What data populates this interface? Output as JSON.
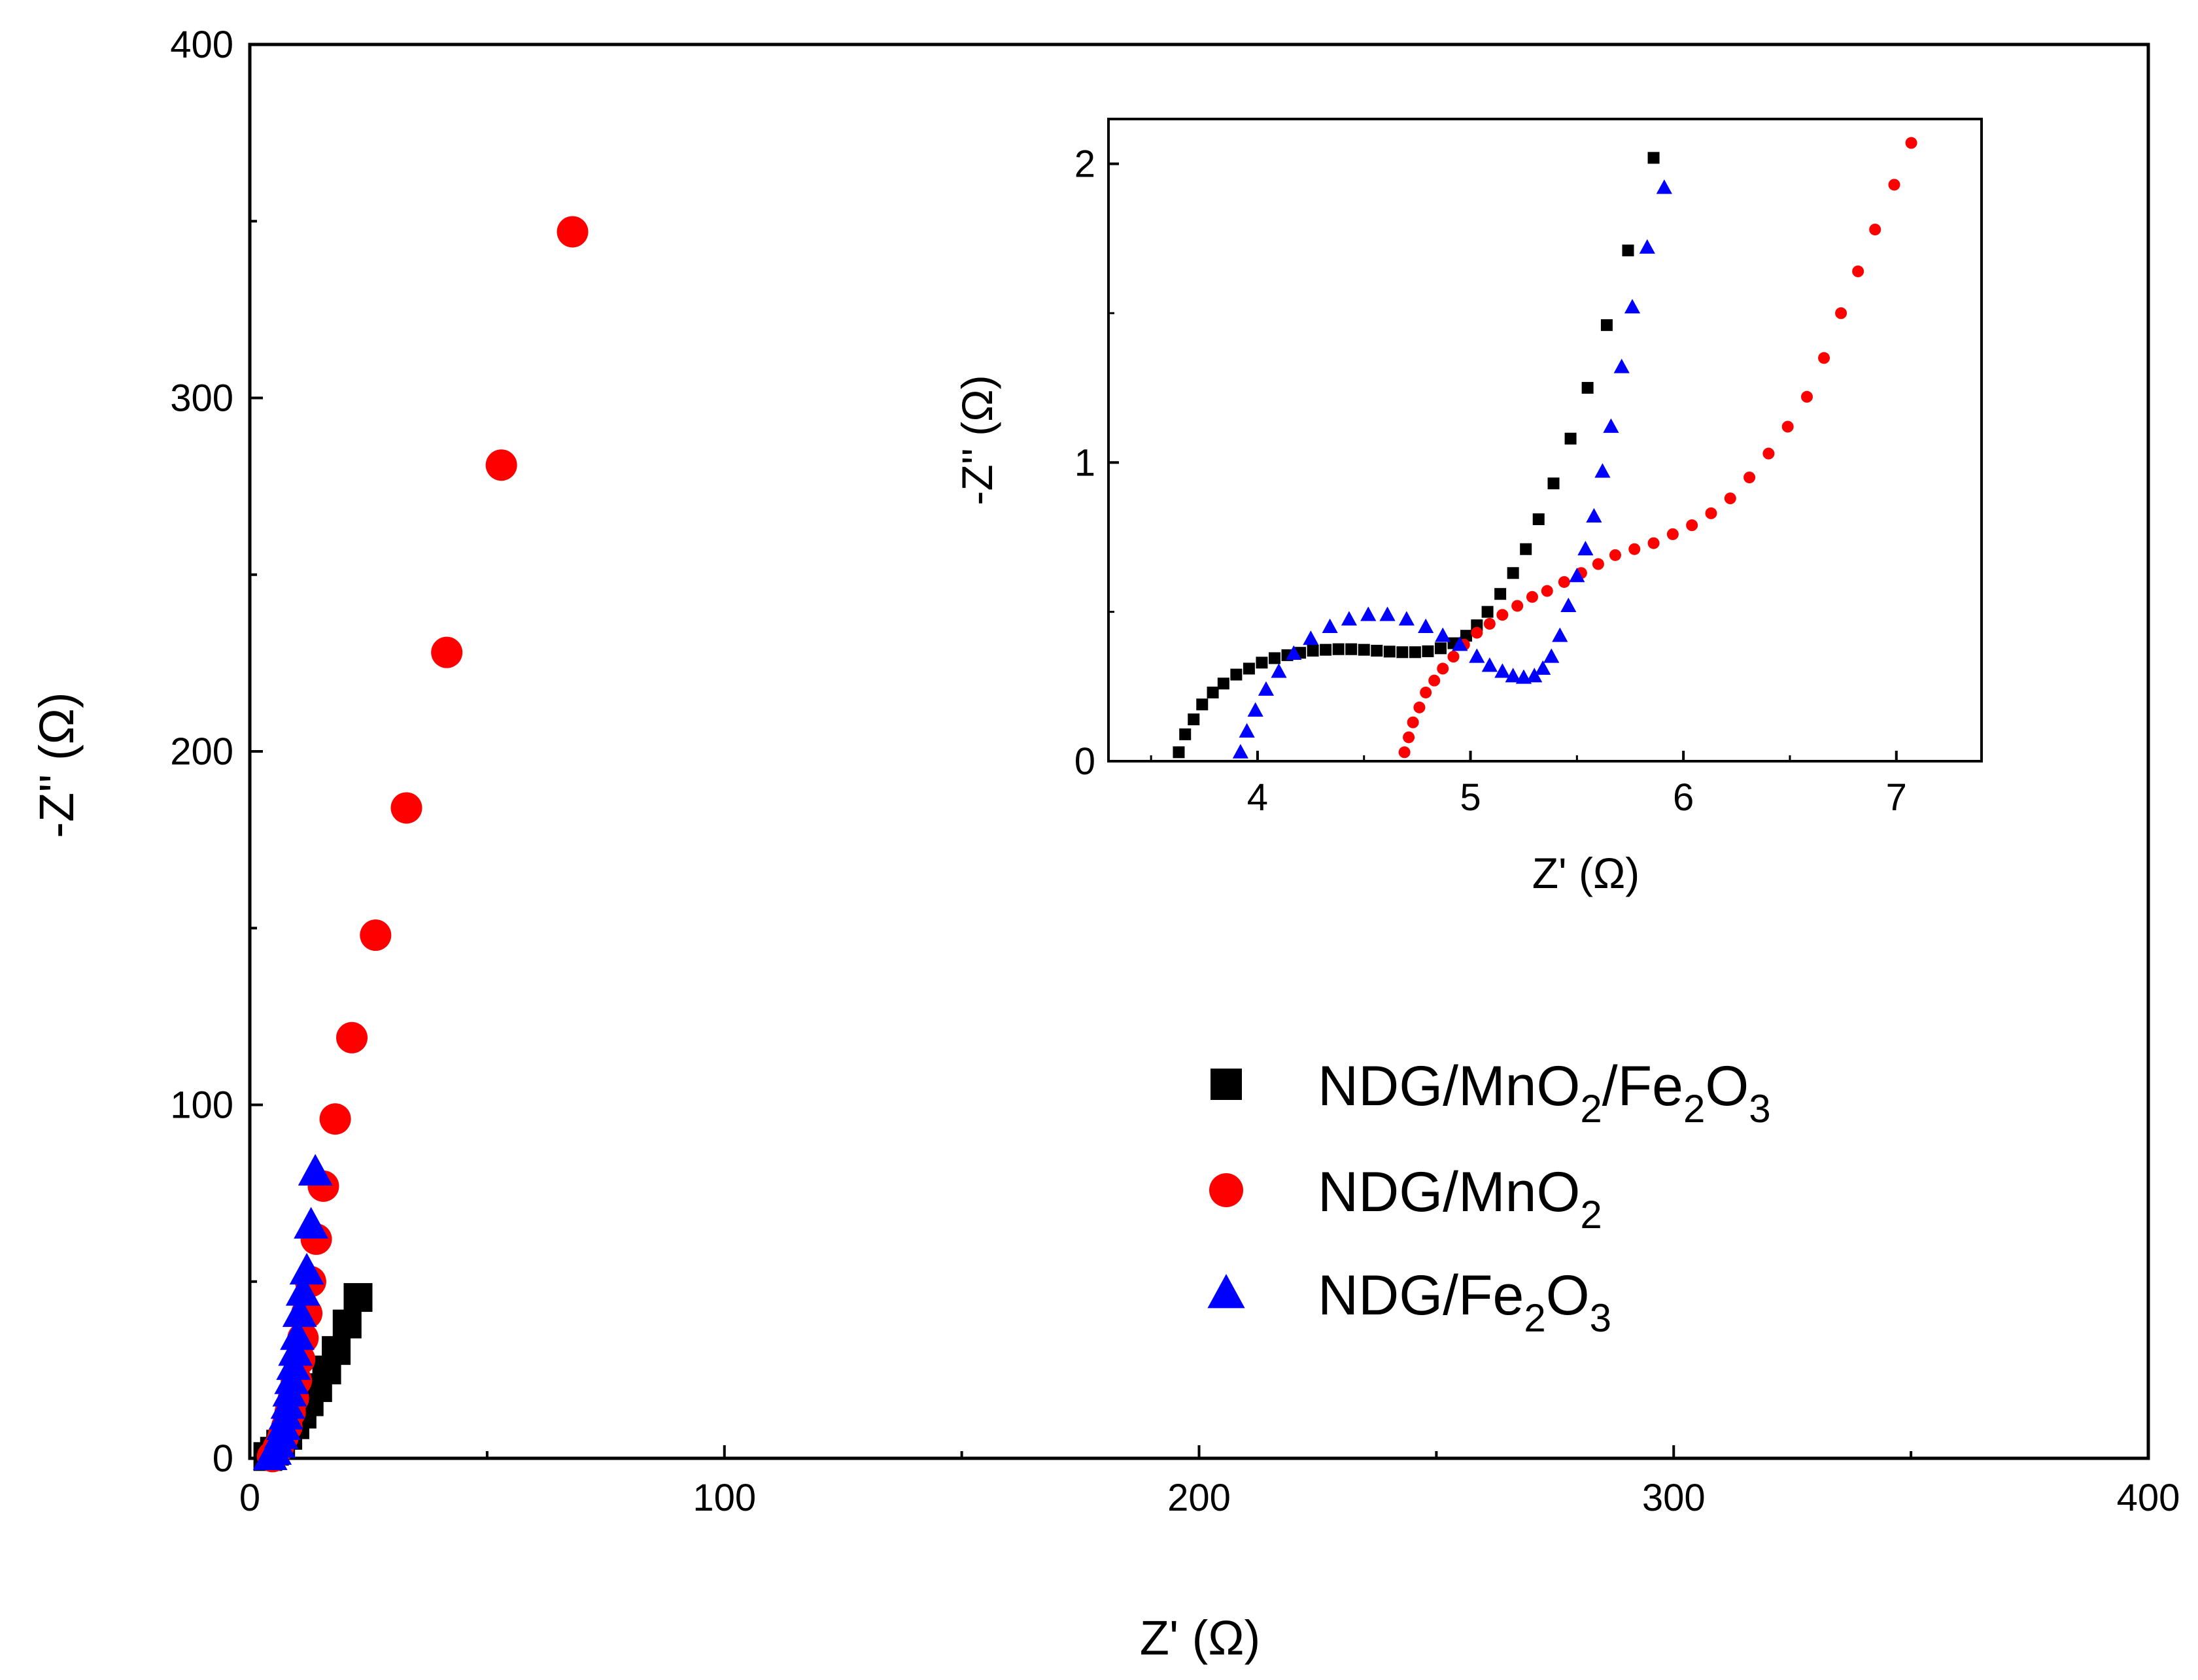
{
  "chart_data": [
    {
      "id": "main",
      "type": "scatter",
      "xlabel": "Z' (Ω)",
      "ylabel": "-Z'' (Ω)",
      "xlim": [
        0,
        400
      ],
      "ylim": [
        0,
        400
      ],
      "xticks": [
        0,
        100,
        200,
        300,
        400
      ],
      "yticks": [
        0,
        100,
        200,
        300,
        400
      ],
      "xticklabels": [
        "0",
        "100",
        "200",
        "300",
        "400"
      ],
      "yticklabels": [
        "0",
        "100",
        "200",
        "300",
        "400"
      ],
      "legend_position": "lower-right",
      "series": [
        {
          "name": "NDG/MnO2/Fe2O3",
          "label_parts": [
            [
              "NDG/MnO",
              "normal"
            ],
            [
              "2",
              "sub"
            ],
            [
              "/Fe",
              "normal"
            ],
            [
              "2",
              "sub"
            ],
            [
              "O",
              "normal"
            ],
            [
              "3",
              "sub"
            ]
          ],
          "marker": "square",
          "color": "#000000",
          "points": [
            [
              3.8,
              0.5
            ],
            [
              5.2,
              2
            ],
            [
              6.5,
              4
            ],
            [
              8,
              6.5
            ],
            [
              9.5,
              9.5
            ],
            [
              11,
              12.5
            ],
            [
              12.5,
              16
            ],
            [
              14.3,
              20
            ],
            [
              16.2,
              25
            ],
            [
              18.2,
              30.5
            ],
            [
              20.5,
              38
            ],
            [
              22.8,
              45.5
            ]
          ]
        },
        {
          "name": "NDG/MnO2",
          "label_parts": [
            [
              "NDG/MnO",
              "normal"
            ],
            [
              "2",
              "sub"
            ]
          ],
          "marker": "circle",
          "color": "#ff0000",
          "points": [
            [
              4.8,
              0.5
            ],
            [
              6,
              3
            ],
            [
              7,
              6
            ],
            [
              7.8,
              9
            ],
            [
              8.5,
              13
            ],
            [
              9.2,
              17
            ],
            [
              9.8,
              22
            ],
            [
              10.5,
              28
            ],
            [
              11.2,
              34
            ],
            [
              12,
              41
            ],
            [
              12.8,
              50
            ],
            [
              14,
              62
            ],
            [
              15.5,
              77
            ],
            [
              18,
              96
            ],
            [
              21.5,
              119
            ],
            [
              26.5,
              148
            ],
            [
              33,
              184
            ],
            [
              41.5,
              228
            ],
            [
              53,
              281
            ],
            [
              68,
              347
            ]
          ]
        },
        {
          "name": "NDG/Fe2O3",
          "label_parts": [
            [
              "NDG/Fe",
              "normal"
            ],
            [
              "2",
              "sub"
            ],
            [
              "O",
              "normal"
            ],
            [
              "3",
              "sub"
            ]
          ],
          "marker": "triangle",
          "color": "#0000ff",
          "points": [
            [
              4.3,
              0.5
            ],
            [
              5.2,
              2
            ],
            [
              6,
              4
            ],
            [
              6.6,
              6.5
            ],
            [
              7.1,
              9
            ],
            [
              7.6,
              12
            ],
            [
              8,
              15
            ],
            [
              8.4,
              18.5
            ],
            [
              8.8,
              22
            ],
            [
              9.2,
              26
            ],
            [
              9.6,
              30
            ],
            [
              10,
              34.5
            ],
            [
              10.5,
              41
            ],
            [
              11.2,
              47
            ],
            [
              12,
              53
            ],
            [
              12.9,
              66
            ],
            [
              13.8,
              81
            ]
          ]
        }
      ]
    },
    {
      "id": "inset",
      "type": "scatter",
      "xlabel": "Z' (Ω)",
      "ylabel": "-Z'' (Ω)",
      "xlim": [
        3.3,
        7.4
      ],
      "ylim": [
        0,
        2.15
      ],
      "xticks": [
        4,
        5,
        6,
        7
      ],
      "yticks": [
        0,
        1,
        2
      ],
      "xticklabels": [
        "4",
        "5",
        "6",
        "7"
      ],
      "yticklabels": [
        "0",
        "1",
        "2"
      ],
      "series": [
        {
          "name": "NDG/MnO2/Fe2O3",
          "marker": "square",
          "color": "#000000",
          "points": [
            [
              3.63,
              0.03
            ],
            [
              3.66,
              0.09
            ],
            [
              3.7,
              0.14
            ],
            [
              3.74,
              0.19
            ],
            [
              3.79,
              0.23
            ],
            [
              3.84,
              0.26
            ],
            [
              3.9,
              0.29
            ],
            [
              3.96,
              0.31
            ],
            [
              4.02,
              0.33
            ],
            [
              4.08,
              0.345
            ],
            [
              4.14,
              0.355
            ],
            [
              4.2,
              0.363
            ],
            [
              4.26,
              0.37
            ],
            [
              4.32,
              0.373
            ],
            [
              4.38,
              0.375
            ],
            [
              4.44,
              0.375
            ],
            [
              4.5,
              0.373
            ],
            [
              4.56,
              0.37
            ],
            [
              4.62,
              0.367
            ],
            [
              4.68,
              0.365
            ],
            [
              4.74,
              0.365
            ],
            [
              4.8,
              0.368
            ],
            [
              4.86,
              0.378
            ],
            [
              4.92,
              0.395
            ],
            [
              4.98,
              0.42
            ],
            [
              5.03,
              0.455
            ],
            [
              5.08,
              0.5
            ],
            [
              5.14,
              0.56
            ],
            [
              5.2,
              0.63
            ],
            [
              5.26,
              0.71
            ],
            [
              5.32,
              0.81
            ],
            [
              5.39,
              0.93
            ],
            [
              5.47,
              1.08
            ],
            [
              5.55,
              1.25
            ],
            [
              5.64,
              1.46
            ],
            [
              5.74,
              1.71
            ],
            [
              5.86,
              2.02
            ]
          ]
        },
        {
          "name": "NDG/MnO2",
          "marker": "circle",
          "color": "#ff0000",
          "points": [
            [
              4.69,
              0.03
            ],
            [
              4.71,
              0.08
            ],
            [
              4.73,
              0.13
            ],
            [
              4.76,
              0.18
            ],
            [
              4.79,
              0.23
            ],
            [
              4.83,
              0.27
            ],
            [
              4.87,
              0.31
            ],
            [
              4.92,
              0.35
            ],
            [
              4.97,
              0.39
            ],
            [
              5.03,
              0.43
            ],
            [
              5.09,
              0.46
            ],
            [
              5.15,
              0.49
            ],
            [
              5.22,
              0.52
            ],
            [
              5.29,
              0.55
            ],
            [
              5.36,
              0.57
            ],
            [
              5.44,
              0.6
            ],
            [
              5.52,
              0.63
            ],
            [
              5.6,
              0.66
            ],
            [
              5.68,
              0.69
            ],
            [
              5.77,
              0.71
            ],
            [
              5.86,
              0.73
            ],
            [
              5.95,
              0.76
            ],
            [
              6.04,
              0.79
            ],
            [
              6.13,
              0.83
            ],
            [
              6.22,
              0.88
            ],
            [
              6.31,
              0.95
            ],
            [
              6.4,
              1.03
            ],
            [
              6.49,
              1.12
            ],
            [
              6.58,
              1.22
            ],
            [
              6.66,
              1.35
            ],
            [
              6.74,
              1.5
            ],
            [
              6.82,
              1.64
            ],
            [
              6.9,
              1.78
            ],
            [
              6.99,
              1.93
            ],
            [
              7.07,
              2.07
            ]
          ]
        },
        {
          "name": "NDG/Fe2O3",
          "marker": "triangle",
          "color": "#0000ff",
          "points": [
            [
              3.92,
              0.03
            ],
            [
              3.95,
              0.1
            ],
            [
              3.99,
              0.17
            ],
            [
              4.04,
              0.24
            ],
            [
              4.1,
              0.3
            ],
            [
              4.17,
              0.36
            ],
            [
              4.25,
              0.41
            ],
            [
              4.34,
              0.45
            ],
            [
              4.43,
              0.475
            ],
            [
              4.52,
              0.49
            ],
            [
              4.61,
              0.49
            ],
            [
              4.7,
              0.475
            ],
            [
              4.79,
              0.45
            ],
            [
              4.87,
              0.42
            ],
            [
              4.95,
              0.39
            ],
            [
              5.03,
              0.35
            ],
            [
              5.09,
              0.32
            ],
            [
              5.15,
              0.3
            ],
            [
              5.2,
              0.285
            ],
            [
              5.25,
              0.28
            ],
            [
              5.3,
              0.285
            ],
            [
              5.34,
              0.31
            ],
            [
              5.38,
              0.35
            ],
            [
              5.42,
              0.42
            ],
            [
              5.46,
              0.52
            ],
            [
              5.5,
              0.62
            ],
            [
              5.54,
              0.71
            ],
            [
              5.58,
              0.82
            ],
            [
              5.62,
              0.97
            ],
            [
              5.66,
              1.12
            ],
            [
              5.71,
              1.32
            ],
            [
              5.76,
              1.52
            ],
            [
              5.83,
              1.72
            ],
            [
              5.91,
              1.92
            ]
          ]
        }
      ]
    }
  ]
}
